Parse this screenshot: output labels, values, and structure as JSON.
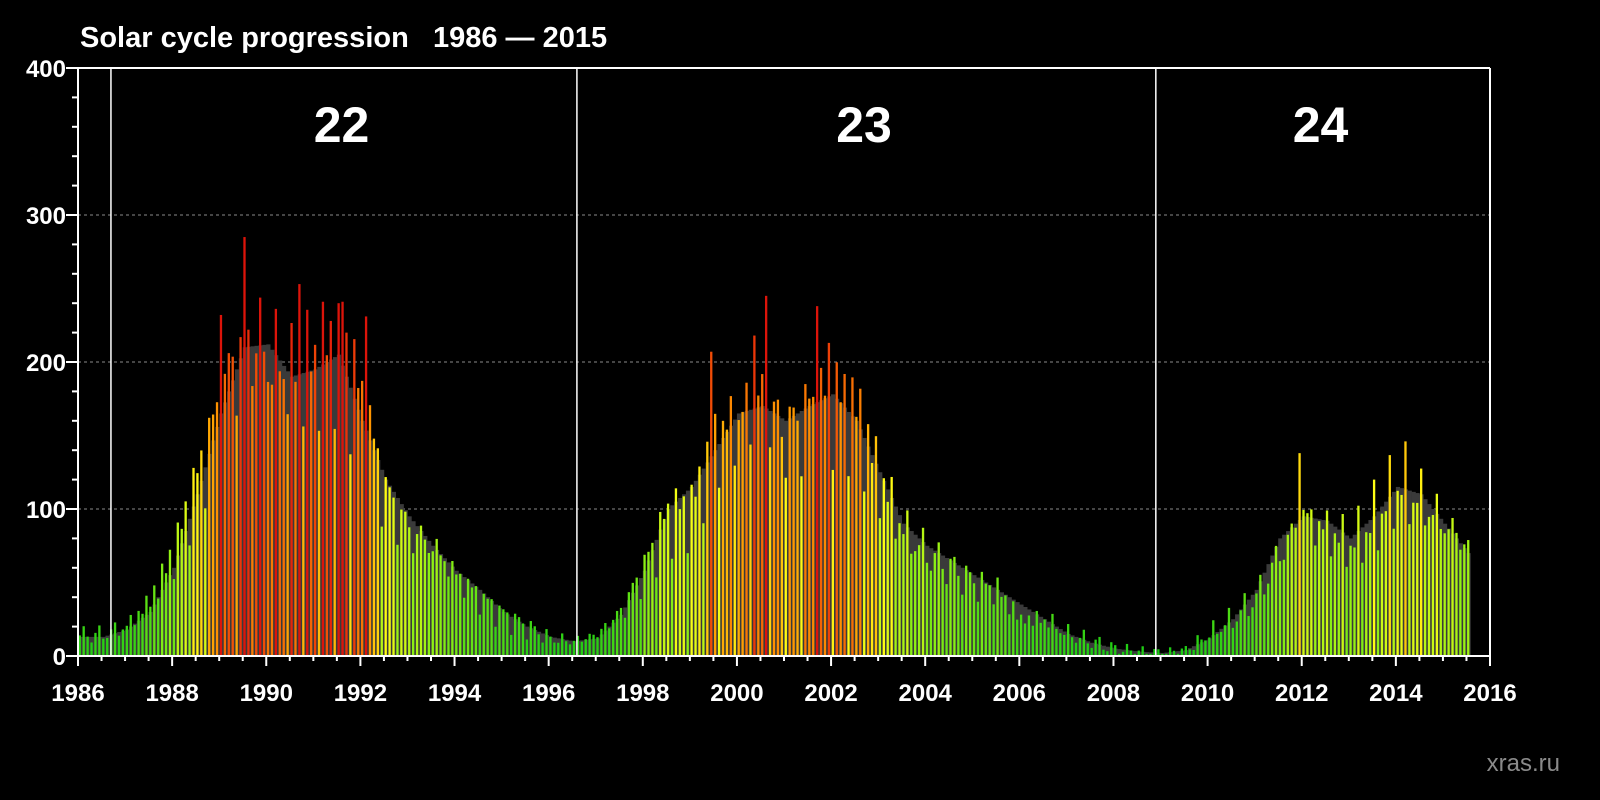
{
  "chart_data": {
    "type": "bar",
    "title": "Solar cycle progression   1986 — 2015",
    "watermark": "xras.ru",
    "xlim": [
      1986,
      2016
    ],
    "ylim": [
      0,
      400
    ],
    "x_ticks": [
      "1986",
      "1988",
      "1990",
      "1992",
      "1994",
      "1996",
      "1998",
      "2000",
      "2002",
      "2004",
      "2006",
      "2008",
      "2010",
      "2012",
      "2014",
      "2016"
    ],
    "y_ticks": [
      "0",
      "100",
      "200",
      "300",
      "400"
    ],
    "grid": "horizontal dashed at 100, 200, 300",
    "cycle_boundaries": [
      1986.7,
      1996.6,
      2008.9
    ],
    "cycles": [
      {
        "label": "22",
        "center_year": 1991.6
      },
      {
        "label": "23",
        "center_year": 2002.7
      },
      {
        "label": "24",
        "center_year": 2012.4
      }
    ],
    "series": [
      {
        "kind": "monthly sunspot number",
        "color_scale": "green (low) → yellow → red (high)",
        "anchors": [
          [
            1986.0,
            14
          ],
          [
            1986.5,
            15
          ],
          [
            1987.0,
            20
          ],
          [
            1987.5,
            38
          ],
          [
            1988.0,
            70
          ],
          [
            1988.5,
            120
          ],
          [
            1989.0,
            170
          ],
          [
            1989.5,
            220
          ],
          [
            1990.0,
            205
          ],
          [
            1990.5,
            190
          ],
          [
            1991.0,
            200
          ],
          [
            1991.5,
            215
          ],
          [
            1992.0,
            170
          ],
          [
            1992.5,
            110
          ],
          [
            1993.0,
            85
          ],
          [
            1993.5,
            75
          ],
          [
            1994.0,
            55
          ],
          [
            1994.5,
            40
          ],
          [
            1995.0,
            28
          ],
          [
            1995.5,
            20
          ],
          [
            1996.0,
            12
          ],
          [
            1996.5,
            10
          ],
          [
            1997.0,
            15
          ],
          [
            1997.5,
            30
          ],
          [
            1998.0,
            60
          ],
          [
            1998.5,
            95
          ],
          [
            1999.0,
            100
          ],
          [
            1999.5,
            145
          ],
          [
            2000.0,
            160
          ],
          [
            2000.5,
            170
          ],
          [
            2001.0,
            150
          ],
          [
            2001.5,
            165
          ],
          [
            2002.0,
            175
          ],
          [
            2002.5,
            165
          ],
          [
            2003.0,
            120
          ],
          [
            2003.5,
            85
          ],
          [
            2004.0,
            70
          ],
          [
            2004.5,
            60
          ],
          [
            2005.0,
            50
          ],
          [
            2005.5,
            45
          ],
          [
            2006.0,
            25
          ],
          [
            2006.5,
            25
          ],
          [
            2007.0,
            15
          ],
          [
            2007.5,
            10
          ],
          [
            2008.0,
            5
          ],
          [
            2008.5,
            3
          ],
          [
            2009.0,
            2
          ],
          [
            2009.5,
            4
          ],
          [
            2010.0,
            15
          ],
          [
            2010.5,
            25
          ],
          [
            2011.0,
            40
          ],
          [
            2011.5,
            70
          ],
          [
            2012.0,
            95
          ],
          [
            2012.5,
            85
          ],
          [
            2013.0,
            75
          ],
          [
            2013.5,
            90
          ],
          [
            2014.0,
            115
          ],
          [
            2014.5,
            105
          ],
          [
            2015.0,
            90
          ],
          [
            2015.5,
            75
          ]
        ],
        "peaks": [
          [
            1989.5,
            285
          ],
          [
            1990.7,
            253
          ],
          [
            1991.2,
            241
          ],
          [
            1991.5,
            240
          ],
          [
            1991.6,
            241
          ],
          [
            1992.1,
            231
          ],
          [
            1989.0,
            232
          ],
          [
            2000.6,
            245
          ],
          [
            2001.7,
            238
          ],
          [
            2001.9,
            213
          ],
          [
            2000.3,
            218
          ],
          [
            1999.4,
            207
          ],
          [
            2011.9,
            138
          ],
          [
            2014.2,
            146
          ],
          [
            2013.5,
            120
          ]
        ]
      },
      {
        "kind": "smoothed sunspot number",
        "color": "#3a3a3a",
        "anchors": [
          [
            1986.0,
            13
          ],
          [
            1986.5,
            13
          ],
          [
            1987.0,
            18
          ],
          [
            1987.5,
            30
          ],
          [
            1988.0,
            60
          ],
          [
            1988.5,
            110
          ],
          [
            1989.0,
            165
          ],
          [
            1989.5,
            210
          ],
          [
            1990.0,
            212
          ],
          [
            1990.5,
            190
          ],
          [
            1991.0,
            195
          ],
          [
            1991.5,
            205
          ],
          [
            1992.0,
            160
          ],
          [
            1992.5,
            120
          ],
          [
            1993.0,
            95
          ],
          [
            1993.5,
            75
          ],
          [
            1994.0,
            58
          ],
          [
            1994.5,
            45
          ],
          [
            1995.0,
            30
          ],
          [
            1995.5,
            20
          ],
          [
            1996.0,
            13
          ],
          [
            1996.5,
            10
          ],
          [
            1997.0,
            12
          ],
          [
            1997.5,
            28
          ],
          [
            1998.0,
            58
          ],
          [
            1998.5,
            100
          ],
          [
            1999.0,
            115
          ],
          [
            1999.5,
            140
          ],
          [
            2000.0,
            165
          ],
          [
            2000.5,
            170
          ],
          [
            2001.0,
            160
          ],
          [
            2001.5,
            170
          ],
          [
            2002.0,
            178
          ],
          [
            2002.5,
            160
          ],
          [
            2003.0,
            125
          ],
          [
            2003.5,
            90
          ],
          [
            2004.0,
            75
          ],
          [
            2004.5,
            65
          ],
          [
            2005.0,
            55
          ],
          [
            2005.5,
            45
          ],
          [
            2006.0,
            35
          ],
          [
            2006.5,
            25
          ],
          [
            2007.0,
            15
          ],
          [
            2007.5,
            9
          ],
          [
            2008.0,
            5
          ],
          [
            2008.5,
            3
          ],
          [
            2009.0,
            2
          ],
          [
            2009.5,
            4
          ],
          [
            2010.0,
            12
          ],
          [
            2010.5,
            25
          ],
          [
            2011.0,
            45
          ],
          [
            2011.5,
            80
          ],
          [
            2012.0,
            95
          ],
          [
            2012.5,
            92
          ],
          [
            2013.0,
            80
          ],
          [
            2013.5,
            95
          ],
          [
            2014.0,
            115
          ],
          [
            2014.5,
            110
          ],
          [
            2015.0,
            90
          ],
          [
            2015.5,
            70
          ]
        ]
      }
    ]
  }
}
